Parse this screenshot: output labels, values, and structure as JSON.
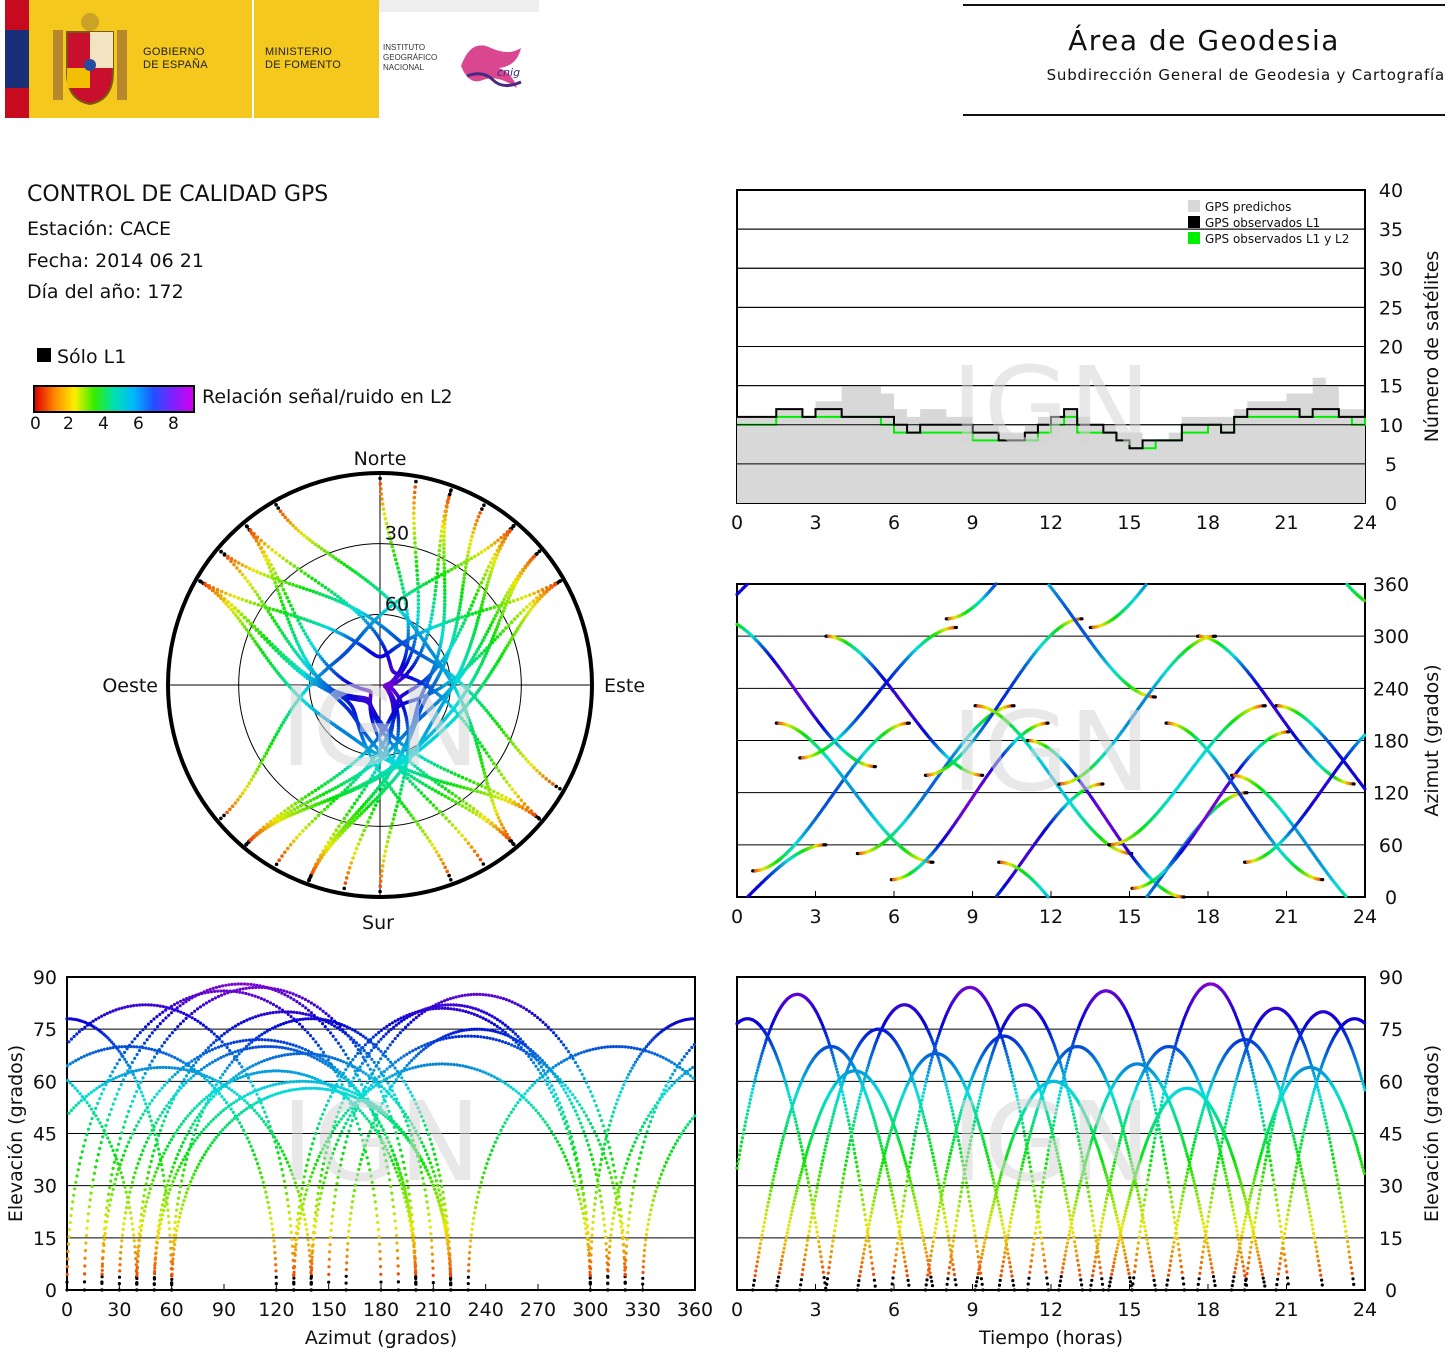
{
  "header": {
    "gov_line1": "GOBIERNO",
    "gov_line2": "DE ESPAÑA",
    "min_line1": "MINISTERIO",
    "min_line2": "DE FOMENTO",
    "ign_line1": "INSTITUTO",
    "ign_line2": "GEOGRÁFICO",
    "ign_line3": "NACIONAL",
    "cnig_logo": "cnig",
    "area_title": "Área de Geodesia",
    "area_subtitle": "Subdirección General de Geodesia y Cartografía"
  },
  "info": {
    "title": "CONTROL DE CALIDAD GPS",
    "station": "Estación: CACE",
    "date": "Fecha: 2014 06 21",
    "doy": "Día del año: 172"
  },
  "legend": {
    "l1_only": "Sólo L1",
    "snr_label": "Relación señal/ruido en L2",
    "snr_ticks": [
      "0",
      "2",
      "4",
      "6",
      "8"
    ],
    "colors": {
      "l1_only": "#000000",
      "predicted": "#d8d8d8",
      "observed_l1": "#000000",
      "observed_l1_l2": "#00ee00"
    }
  },
  "watermark": "IGN",
  "chart_data": [
    {
      "type": "area",
      "id": "satellite-count",
      "xlabel": "",
      "ylabel": "Número de satélites",
      "xlim": [
        0,
        24
      ],
      "ylim": [
        0,
        40
      ],
      "xticks": [
        0,
        3,
        6,
        9,
        12,
        15,
        18,
        21,
        24
      ],
      "yticks": [
        0,
        5,
        10,
        15,
        20,
        25,
        30,
        35,
        40
      ],
      "grid": "horizontal",
      "legend_position": "top-right",
      "legend": [
        "GPS predichos",
        "GPS observados L1",
        "GPS observados L1 y L2"
      ],
      "x": [
        0,
        1,
        1.5,
        2,
        2.5,
        3,
        4,
        5,
        5.5,
        6,
        6.5,
        7,
        7.5,
        8,
        8.5,
        9,
        9.5,
        10,
        10.5,
        11,
        11.5,
        12,
        12.5,
        13,
        13.5,
        14,
        14.5,
        15,
        15.5,
        16,
        16.5,
        17,
        17.5,
        18,
        18.5,
        19,
        19.5,
        20,
        20.5,
        21,
        21.5,
        22,
        22.5,
        23,
        23.5,
        24
      ],
      "series": [
        {
          "name": "GPS predichos",
          "values": [
            11,
            11,
            12,
            12,
            11,
            13,
            15,
            15,
            14,
            12,
            11,
            12,
            12,
            11,
            11,
            10,
            10,
            9,
            9,
            10,
            11,
            11,
            12,
            11,
            10,
            10,
            9,
            9,
            8,
            8,
            9,
            11,
            11,
            11,
            11,
            12,
            13,
            13,
            13,
            14,
            14,
            16,
            15,
            12,
            12,
            12
          ]
        },
        {
          "name": "GPS observados L1",
          "values": [
            11,
            11,
            12,
            12,
            11,
            12,
            11,
            11,
            11,
            10,
            9,
            10,
            10,
            10,
            10,
            9,
            9,
            8,
            8,
            9,
            10,
            11,
            12,
            10,
            10,
            9,
            8,
            7,
            8,
            8,
            8,
            10,
            10,
            10,
            9,
            11,
            12,
            12,
            12,
            12,
            11,
            12,
            12,
            11,
            11,
            12
          ]
        },
        {
          "name": "GPS observados L1 y L2",
          "values": [
            10,
            10,
            11,
            11,
            11,
            11,
            11,
            11,
            10,
            9,
            9,
            9,
            9,
            9,
            9,
            8,
            8,
            8,
            8,
            8,
            9,
            10,
            11,
            9,
            9,
            9,
            8,
            7,
            7,
            8,
            8,
            9,
            9,
            10,
            9,
            11,
            11,
            11,
            11,
            11,
            11,
            11,
            11,
            11,
            10,
            11
          ]
        }
      ]
    },
    {
      "type": "scatter",
      "id": "sky-plot",
      "labels": {
        "north": "Norte",
        "south": "Sur",
        "east": "Este",
        "west": "Oeste"
      },
      "elevation_rings": [
        30,
        60
      ],
      "note_color": "snr_l2"
    },
    {
      "type": "scatter",
      "id": "azimuth-time",
      "xlabel": "",
      "ylabel": "Azimut (grados)",
      "xlim": [
        0,
        24
      ],
      "ylim": [
        0,
        360
      ],
      "xticks": [
        0,
        3,
        6,
        9,
        12,
        15,
        18,
        21,
        24
      ],
      "yticks": [
        0,
        60,
        120,
        180,
        240,
        300,
        360
      ],
      "grid": "horizontal"
    },
    {
      "type": "scatter",
      "id": "elevation-azimuth",
      "xlabel": "Azimut (grados)",
      "ylabel": "Elevación (grados)",
      "xlim": [
        0,
        360
      ],
      "ylim": [
        0,
        90
      ],
      "xticks": [
        0,
        30,
        60,
        90,
        120,
        150,
        180,
        210,
        240,
        270,
        300,
        330,
        360
      ],
      "yticks": [
        0,
        15,
        30,
        45,
        60,
        75,
        90
      ],
      "grid": "horizontal"
    },
    {
      "type": "scatter",
      "id": "elevation-time",
      "xlabel": "Tiempo (horas)",
      "ylabel": "Elevación (grados)",
      "xlim": [
        0,
        24
      ],
      "ylim": [
        0,
        90
      ],
      "xticks": [
        0,
        3,
        6,
        9,
        12,
        15,
        18,
        21,
        24
      ],
      "yticks": [
        0,
        15,
        30,
        45,
        60,
        75,
        90
      ],
      "grid": "horizontal"
    }
  ],
  "satellites": [
    {
      "peak_time": 0.4,
      "max_el": 78,
      "az_start": 300,
      "az_end": 60
    },
    {
      "peak_time": 2.3,
      "max_el": 85,
      "az_start": 320,
      "az_end": 150
    },
    {
      "peak_time": 3.6,
      "max_el": 70,
      "az_start": 30,
      "az_end": 200
    },
    {
      "peak_time": 4.5,
      "max_el": 63,
      "az_start": 200,
      "az_end": 40
    },
    {
      "peak_time": 5.4,
      "max_el": 75,
      "az_start": 160,
      "az_end": 310
    },
    {
      "peak_time": 6.4,
      "max_el": 82,
      "az_start": 300,
      "az_end": 140
    },
    {
      "peak_time": 7.6,
      "max_el": 68,
      "az_start": 50,
      "az_end": 220
    },
    {
      "peak_time": 8.9,
      "max_el": 87,
      "az_start": 20,
      "az_end": 200
    },
    {
      "peak_time": 10.2,
      "max_el": 73,
      "az_start": 140,
      "az_end": 320
    },
    {
      "peak_time": 11.0,
      "max_el": 82,
      "az_start": 320,
      "az_end": 130
    },
    {
      "peak_time": 12.1,
      "max_el": 60,
      "az_start": 220,
      "az_end": 50
    },
    {
      "peak_time": 13.0,
      "max_el": 70,
      "az_start": 40,
      "az_end": 230
    },
    {
      "peak_time": 14.1,
      "max_el": 86,
      "az_start": 180,
      "az_end": 0
    },
    {
      "peak_time": 15.3,
      "max_el": 65,
      "az_start": 130,
      "az_end": 300
    },
    {
      "peak_time": 16.5,
      "max_el": 70,
      "az_start": 310,
      "az_end": 120
    },
    {
      "peak_time": 17.2,
      "max_el": 58,
      "az_start": 60,
      "az_end": 220
    },
    {
      "peak_time": 18.1,
      "max_el": 88,
      "az_start": 10,
      "az_end": 190
    },
    {
      "peak_time": 19.4,
      "max_el": 72,
      "az_start": 200,
      "az_end": 20
    },
    {
      "peak_time": 20.6,
      "max_el": 81,
      "az_start": 300,
      "az_end": 130
    },
    {
      "peak_time": 21.9,
      "max_el": 64,
      "az_start": 140,
      "az_end": 330
    },
    {
      "peak_time": 22.4,
      "max_el": 80,
      "az_start": 40,
      "az_end": 210
    },
    {
      "peak_time": 23.6,
      "max_el": 78,
      "az_start": 220,
      "az_end": 60
    }
  ]
}
